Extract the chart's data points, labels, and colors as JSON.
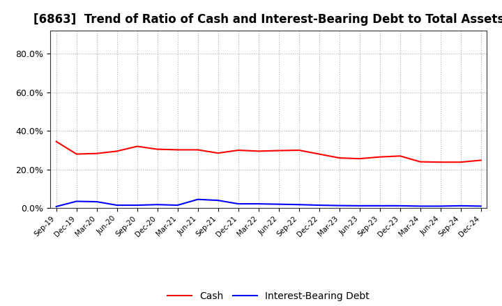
{
  "title": "[6863]  Trend of Ratio of Cash and Interest-Bearing Debt to Total Assets",
  "x_labels": [
    "Sep-19",
    "Dec-19",
    "Mar-20",
    "Jun-20",
    "Sep-20",
    "Dec-20",
    "Mar-21",
    "Jun-21",
    "Sep-21",
    "Dec-21",
    "Mar-22",
    "Jun-22",
    "Sep-22",
    "Dec-22",
    "Mar-23",
    "Jun-23",
    "Sep-23",
    "Dec-23",
    "Mar-24",
    "Jun-24",
    "Sep-24",
    "Dec-24"
  ],
  "cash": [
    0.345,
    0.28,
    0.283,
    0.295,
    0.32,
    0.305,
    0.302,
    0.302,
    0.285,
    0.3,
    0.295,
    0.298,
    0.3,
    0.28,
    0.26,
    0.256,
    0.265,
    0.27,
    0.24,
    0.238,
    0.238,
    0.248
  ],
  "ibd": [
    0.008,
    0.035,
    0.033,
    0.015,
    0.015,
    0.018,
    0.015,
    0.045,
    0.04,
    0.022,
    0.022,
    0.02,
    0.018,
    0.015,
    0.013,
    0.012,
    0.012,
    0.012,
    0.01,
    0.01,
    0.012,
    0.01
  ],
  "cash_color": "#ff0000",
  "ibd_color": "#0000ff",
  "ylim": [
    0.0,
    0.92
  ],
  "yticks": [
    0.0,
    0.2,
    0.4,
    0.6,
    0.8
  ],
  "background_color": "#ffffff",
  "grid_color": "#aaaaaa",
  "title_fontsize": 12
}
